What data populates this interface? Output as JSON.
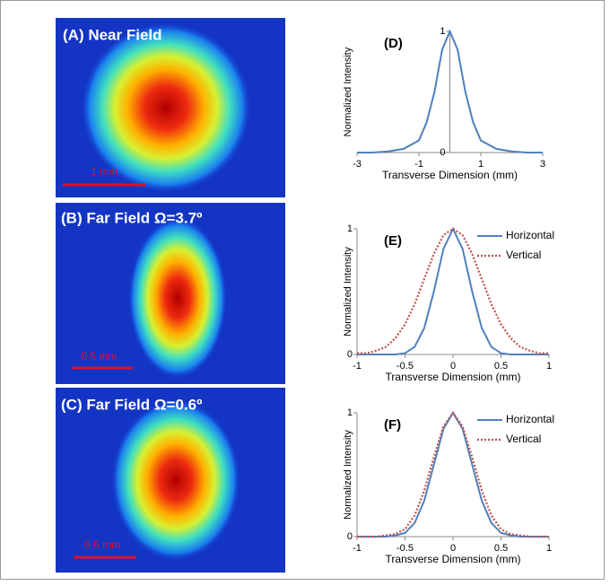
{
  "panels": [
    {
      "label": "(A) Near Field",
      "scale_bar": "1 mm"
    },
    {
      "label": "(B) Far Field Ω=3.7º",
      "scale_bar": "0.5 mm"
    },
    {
      "label": "(C) Far Field Ω=0.6º",
      "scale_bar": "0.5 mm"
    }
  ],
  "chart_data": [
    {
      "type": "line",
      "label": "(D)",
      "x_label": "Transverse Dimension (mm)",
      "y_label": "Normalized Intensity",
      "x": [
        -3,
        -2.5,
        -2,
        -1.5,
        -1,
        -0.75,
        -0.5,
        -0.25,
        0,
        0.25,
        0.5,
        0.75,
        1,
        1.5,
        2,
        2.5,
        3
      ],
      "values": [
        0,
        0,
        0.01,
        0.03,
        0.1,
        0.25,
        0.5,
        0.85,
        1,
        0.85,
        0.5,
        0.25,
        0.1,
        0.03,
        0.01,
        0,
        0
      ],
      "color": "#4f81bd",
      "xlim": [
        -3,
        3
      ],
      "ylim": [
        0,
        1
      ],
      "xticks": [
        -3,
        -1,
        1,
        3
      ],
      "yticks": [
        0,
        1
      ],
      "y_axis_at": 0
    },
    {
      "type": "line",
      "label": "(E)",
      "x_label": "Transverse Dimension (mm)",
      "y_label": "Normalized Intensity",
      "x": [
        -1,
        -0.9,
        -0.8,
        -0.7,
        -0.6,
        -0.5,
        -0.4,
        -0.3,
        -0.2,
        -0.1,
        0,
        0.1,
        0.2,
        0.3,
        0.4,
        0.5,
        0.6,
        0.7,
        0.8,
        0.9,
        1
      ],
      "series": [
        {
          "name": "Horizontal",
          "color": "#4f81bd",
          "style": "solid",
          "values": [
            0,
            0,
            0,
            0,
            0,
            0.01,
            0.06,
            0.21,
            0.5,
            0.84,
            1,
            0.84,
            0.5,
            0.21,
            0.06,
            0.01,
            0,
            0,
            0,
            0,
            0
          ]
        },
        {
          "name": "Vertical",
          "color": "#c0504d",
          "style": "dotted",
          "values": [
            0.01,
            0.01,
            0.03,
            0.06,
            0.13,
            0.24,
            0.4,
            0.6,
            0.8,
            0.95,
            1,
            0.95,
            0.8,
            0.6,
            0.4,
            0.24,
            0.13,
            0.06,
            0.03,
            0.01,
            0.01
          ]
        }
      ],
      "xlim": [
        -1,
        1
      ],
      "ylim": [
        0,
        1
      ],
      "xticks": [
        -1,
        -0.5,
        0,
        0.5,
        1
      ],
      "yticks": [
        0,
        1
      ]
    },
    {
      "type": "line",
      "label": "(F)",
      "x_label": "Transverse Dimension (mm)",
      "y_label": "Normalized Intensity",
      "x": [
        -1,
        -0.9,
        -0.8,
        -0.7,
        -0.6,
        -0.5,
        -0.4,
        -0.3,
        -0.2,
        -0.1,
        0,
        0.1,
        0.2,
        0.3,
        0.4,
        0.5,
        0.6,
        0.7,
        0.8,
        0.9,
        1
      ],
      "series": [
        {
          "name": "Horizontal",
          "color": "#4f81bd",
          "style": "solid",
          "values": [
            0,
            0,
            0,
            0,
            0.01,
            0.03,
            0.11,
            0.29,
            0.58,
            0.87,
            1,
            0.87,
            0.58,
            0.29,
            0.11,
            0.03,
            0.01,
            0,
            0,
            0,
            0
          ]
        },
        {
          "name": "Vertical",
          "color": "#c0504d",
          "style": "dotted",
          "values": [
            0,
            0,
            0,
            0.01,
            0.02,
            0.06,
            0.17,
            0.37,
            0.64,
            0.89,
            1,
            0.89,
            0.64,
            0.37,
            0.17,
            0.06,
            0.02,
            0.01,
            0,
            0,
            0
          ]
        }
      ],
      "xlim": [
        -1,
        1
      ],
      "ylim": [
        0,
        1
      ],
      "xticks": [
        -1,
        -0.5,
        0,
        0.5,
        1
      ],
      "yticks": [
        0,
        1
      ]
    }
  ]
}
